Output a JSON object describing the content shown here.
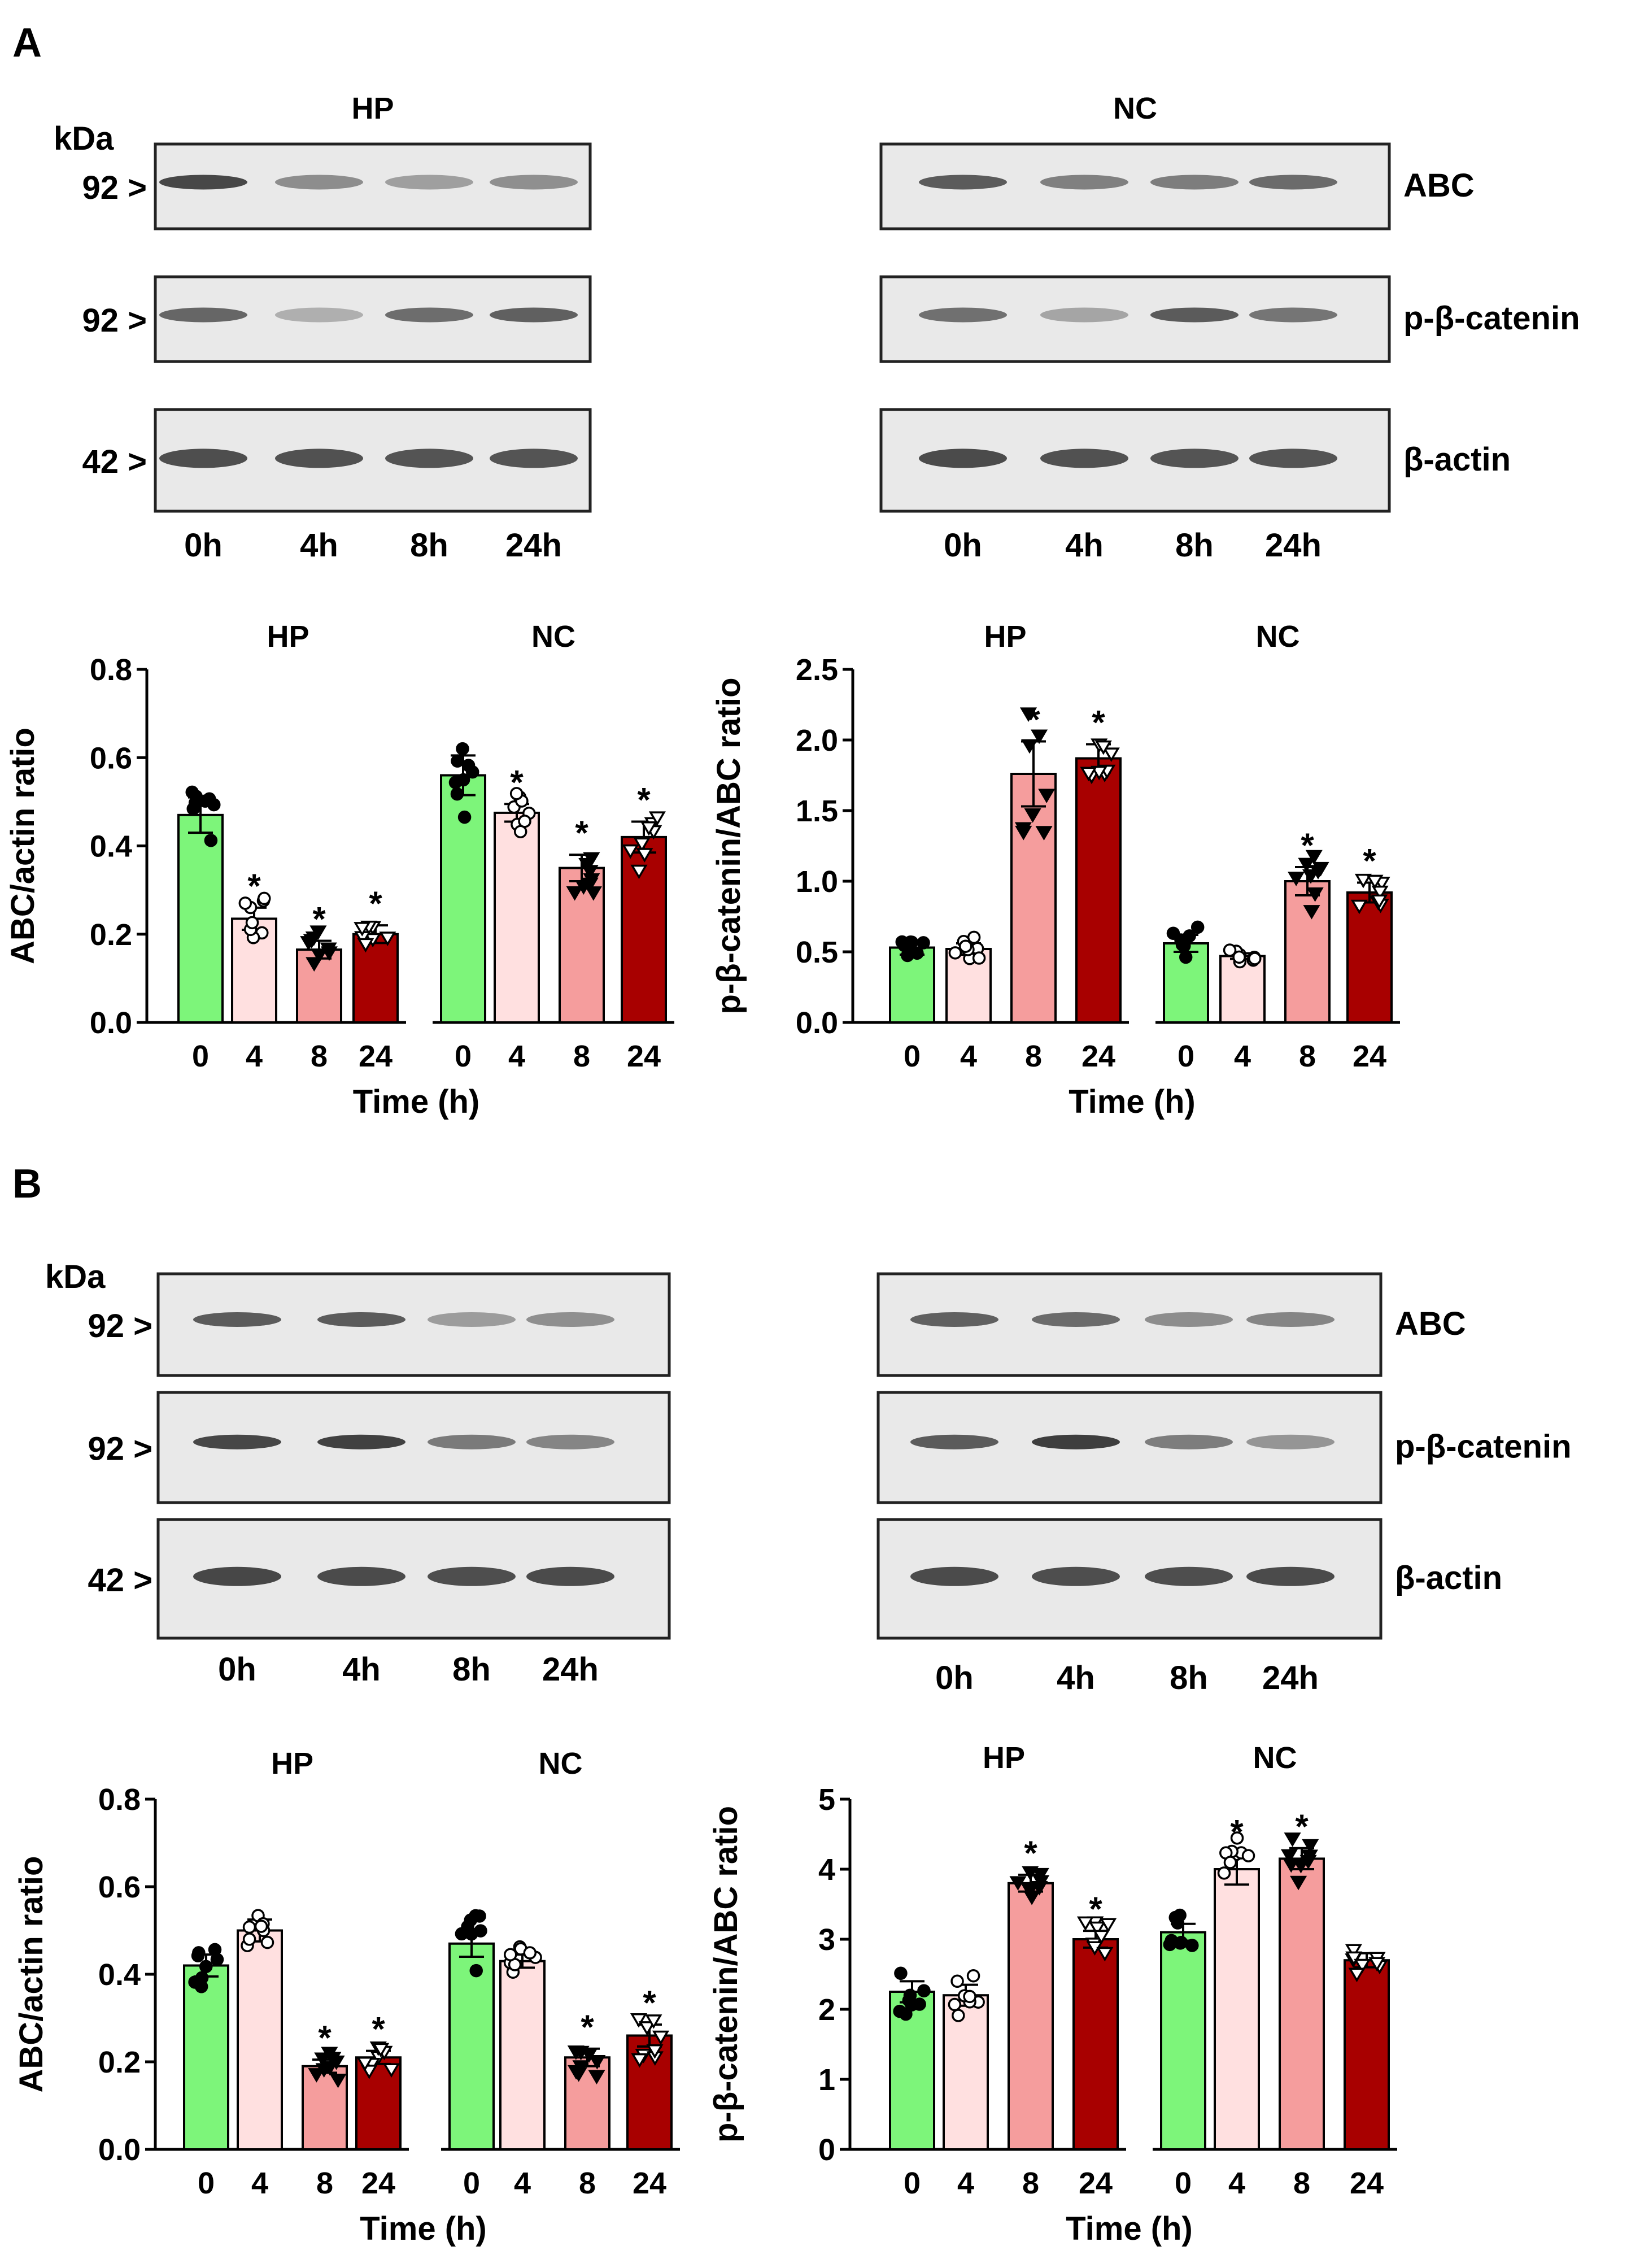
{
  "panels": [
    {
      "letter": "A",
      "blot": {
        "kda_label": "kDa",
        "groups": [
          "HP",
          "NC"
        ],
        "markers": [
          "92 >",
          "92 >",
          "42 >"
        ],
        "proteins": [
          "ABC",
          "p-β-catenin",
          "β-actin"
        ],
        "lanes": [
          "0h",
          "4h",
          "8h",
          "24h"
        ],
        "band_intensity": {
          "HP": [
            [
              0.85,
              0.4,
              0.28,
              0.38
            ],
            [
              0.65,
              0.18,
              0.6,
              0.68
            ],
            [
              0.8,
              0.78,
              0.76,
              0.76
            ]
          ],
          "NC": [
            [
              0.72,
              0.48,
              0.5,
              0.62
            ],
            [
              0.58,
              0.25,
              0.72,
              0.55
            ],
            [
              0.82,
              0.78,
              0.76,
              0.76
            ]
          ]
        }
      },
      "charts": [
        {
          "type": "bar",
          "groups": [
            "HP",
            "NC"
          ],
          "categories": [
            "0",
            "4",
            "8",
            "24"
          ],
          "xlabel": "Time (h)",
          "ylabel": "ABC/actin ratio",
          "ylim": [
            0,
            0.8
          ],
          "yticks": [
            "0.0",
            "0.2",
            "0.4",
            "0.6",
            "0.8"
          ],
          "values": {
            "HP": [
              0.47,
              0.235,
              0.165,
              0.2
            ],
            "NC": [
              0.56,
              0.475,
              0.35,
              0.42
            ]
          },
          "errors": {
            "HP": [
              0.04,
              0.025,
              0.02,
              0.02
            ],
            "NC": [
              0.045,
              0.02,
              0.03,
              0.035
            ]
          },
          "significant": {
            "HP": [
              false,
              true,
              true,
              true
            ],
            "NC": [
              false,
              true,
              true,
              true
            ]
          },
          "significance_mark": "*"
        },
        {
          "type": "bar",
          "groups": [
            "HP",
            "NC"
          ],
          "categories": [
            "0",
            "4",
            "8",
            "24"
          ],
          "xlabel": "Time (h)",
          "ylabel": "p-β-catenin/ABC ratio",
          "ylim": [
            0,
            2.5
          ],
          "yticks": [
            "0.0",
            "0.5",
            "1.0",
            "1.5",
            "2.0",
            "2.5"
          ],
          "values": {
            "HP": [
              0.53,
              0.52,
              1.76,
              1.87
            ],
            "NC": [
              0.56,
              0.47,
              1.0,
              0.92
            ]
          },
          "errors": {
            "HP": [
              0.05,
              0.04,
              0.23,
              0.1
            ],
            "NC": [
              0.06,
              0.02,
              0.1,
              0.07
            ]
          },
          "significant": {
            "HP": [
              false,
              false,
              true,
              true
            ],
            "NC": [
              false,
              false,
              true,
              true
            ]
          },
          "significance_mark": "*"
        }
      ]
    },
    {
      "letter": "B",
      "blot": {
        "kda_label": "kDa",
        "groups": [
          "",
          ""
        ],
        "markers": [
          "92 >",
          "92 >",
          "42 >"
        ],
        "proteins": [
          "ABC",
          "p-β-catenin",
          "β-actin"
        ],
        "lanes": [
          "0h",
          "4h",
          "8h",
          "24h"
        ],
        "band_intensity": {
          "HP": [
            [
              0.72,
              0.72,
              0.3,
              0.38
            ],
            [
              0.85,
              0.88,
              0.52,
              0.45
            ],
            [
              0.85,
              0.82,
              0.8,
              0.82
            ]
          ],
          "NC": [
            [
              0.68,
              0.62,
              0.4,
              0.45
            ],
            [
              0.72,
              0.9,
              0.5,
              0.35
            ],
            [
              0.82,
              0.8,
              0.8,
              0.82
            ]
          ]
        }
      },
      "charts": [
        {
          "type": "bar",
          "groups": [
            "HP",
            "NC"
          ],
          "categories": [
            "0",
            "4",
            "8",
            "24"
          ],
          "xlabel": "Time (h)",
          "ylabel": "ABC/actin ratio",
          "ylim": [
            0,
            0.8
          ],
          "yticks": [
            "0.0",
            "0.2",
            "0.4",
            "0.6",
            "0.8"
          ],
          "values": {
            "HP": [
              0.42,
              0.5,
              0.19,
              0.21
            ],
            "NC": [
              0.47,
              0.43,
              0.21,
              0.26
            ]
          },
          "errors": {
            "HP": [
              0.025,
              0.025,
              0.015,
              0.015
            ],
            "NC": [
              0.03,
              0.015,
              0.02,
              0.025
            ]
          },
          "significant": {
            "HP": [
              false,
              false,
              true,
              true
            ],
            "NC": [
              false,
              false,
              true,
              true
            ]
          },
          "significance_mark": "*"
        },
        {
          "type": "bar",
          "groups": [
            "HP",
            "NC"
          ],
          "categories": [
            "0",
            "4",
            "8",
            "24"
          ],
          "xlabel": "Time (h)",
          "ylabel": "p-β-catenin/ABC ratio",
          "ylim": [
            0,
            5
          ],
          "yticks": [
            "0",
            "1",
            "2",
            "3",
            "4",
            "5"
          ],
          "values": {
            "HP": [
              2.25,
              2.2,
              3.8,
              3.0
            ],
            "NC": [
              3.1,
              4.0,
              4.15,
              2.7
            ]
          },
          "errors": {
            "HP": [
              0.15,
              0.15,
              0.12,
              0.12
            ],
            "NC": [
              0.12,
              0.22,
              0.15,
              0.1
            ]
          },
          "significant": {
            "HP": [
              false,
              false,
              true,
              true
            ],
            "NC": [
              false,
              true,
              true,
              false
            ]
          },
          "significance_mark": "*"
        }
      ]
    }
  ],
  "palette": {
    "t0": "#7df57a",
    "t4": "#ffe0e0",
    "t8": "#f59d9d",
    "t24": "#a80000"
  }
}
